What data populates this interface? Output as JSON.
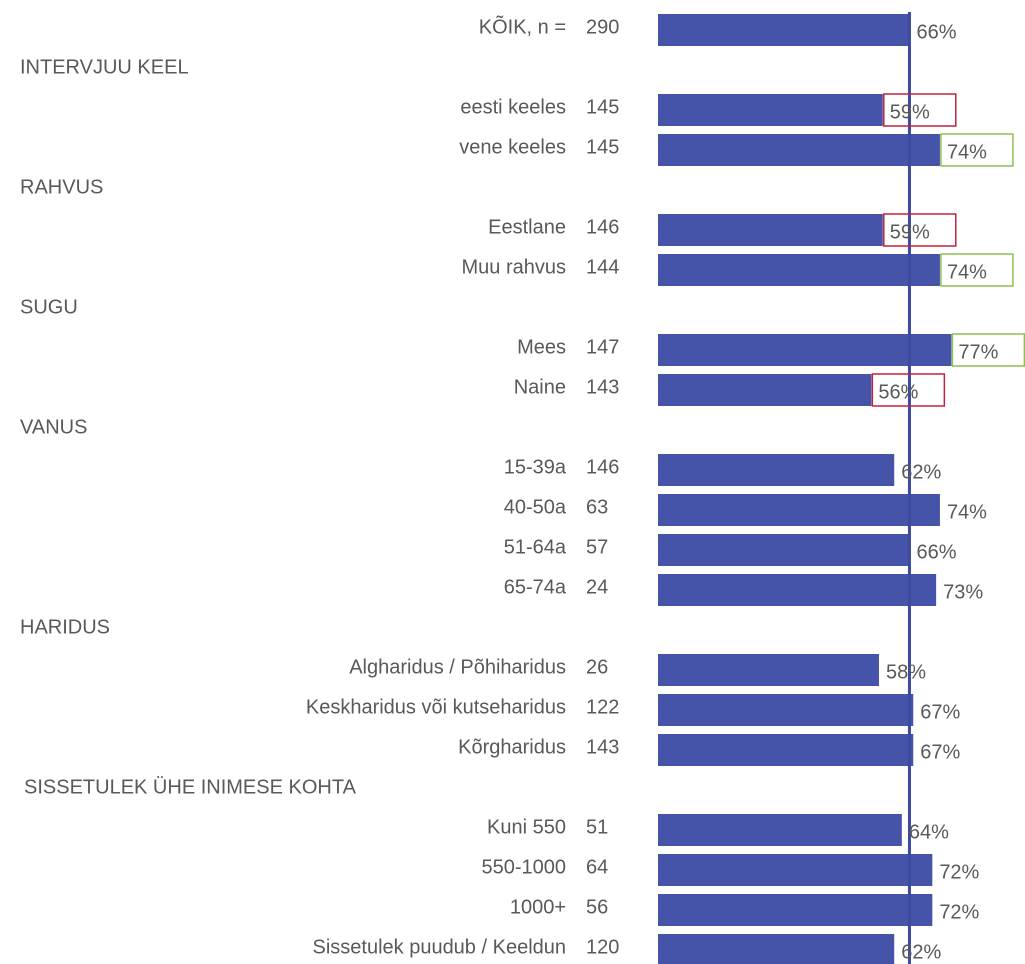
{
  "chart_data": {
    "type": "bar",
    "orientation": "horizontal",
    "color": "#4553a8",
    "xlim": [
      0,
      100
    ],
    "groups": [
      {
        "categories": [
          "KÕIK, n ="
        ],
        "n": [
          290
        ],
        "values": [
          66
        ],
        "value_labels": [
          "66%"
        ],
        "box_colors": [
          null
        ]
      },
      {
        "title": "INTERVJUU KEEL",
        "categories": [
          "eesti keeles",
          "vene keeles"
        ],
        "n": [
          145,
          145
        ],
        "values": [
          59,
          74
        ],
        "value_labels": [
          "59%",
          "74%"
        ],
        "box_colors": [
          "#c0223e",
          "#8cc152"
        ]
      },
      {
        "title": "RAHVUS",
        "categories": [
          "Eestlane",
          "Muu rahvus"
        ],
        "n": [
          146,
          144
        ],
        "values": [
          59,
          74
        ],
        "value_labels": [
          "59%",
          "74%"
        ],
        "box_colors": [
          "#c0223e",
          "#8cc152"
        ]
      },
      {
        "title": "SUGU",
        "categories": [
          "Mees",
          "Naine"
        ],
        "n": [
          147,
          143
        ],
        "values": [
          77,
          56
        ],
        "value_labels": [
          "77%",
          "56%"
        ],
        "box_colors": [
          "#8cc152",
          "#c0223e"
        ]
      },
      {
        "title": "VANUS",
        "categories": [
          "15-39a",
          "40-50a",
          "51-64a",
          "65-74a"
        ],
        "n": [
          146,
          63,
          57,
          24
        ],
        "values": [
          62,
          74,
          66,
          73
        ],
        "value_labels": [
          "62%",
          "74%",
          "66%",
          "73%"
        ],
        "box_colors": [
          null,
          null,
          null,
          null
        ]
      },
      {
        "title": "HARIDUS",
        "categories": [
          "Algharidus / Põhiharidus",
          "Keskharidus või kutseharidus",
          "Kõrgharidus"
        ],
        "n": [
          26,
          122,
          143
        ],
        "values": [
          58,
          67,
          67
        ],
        "value_labels": [
          "58%",
          "67%",
          "67%"
        ],
        "box_colors": [
          null,
          null,
          null
        ]
      },
      {
        "title": "SISSETULEK ÜHE INIMESE KOHTA",
        "categories": [
          "Kuni 550",
          "550-1000",
          "1000+",
          "Sissetulek puudub / Keeldun"
        ],
        "n": [
          51,
          64,
          56,
          120
        ],
        "values": [
          64,
          72,
          72,
          62
        ],
        "value_labels": [
          "64%",
          "72%",
          "72%",
          "62%"
        ],
        "box_colors": [
          null,
          null,
          null,
          null
        ]
      }
    ]
  }
}
